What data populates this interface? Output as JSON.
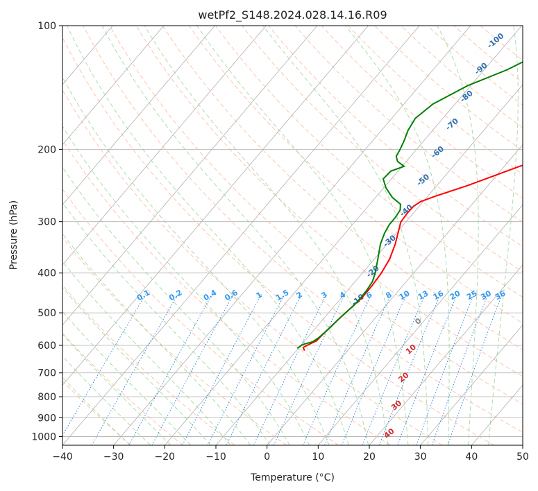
{
  "chart_data": {
    "type": "line",
    "subtype": "skew-t",
    "title": "wetPf2_S148.2024.028.14.16.R09",
    "xlabel": "Temperature (°C)",
    "ylabel": "Pressure (hPa)",
    "xlim": [
      -40,
      50
    ],
    "ylim": [
      1050,
      100
    ],
    "y_scale": "log",
    "grid": true,
    "x_ticks": [
      -40,
      -30,
      -20,
      -10,
      0,
      10,
      20,
      30,
      40,
      50
    ],
    "y_ticks": [
      100,
      200,
      300,
      400,
      500,
      600,
      700,
      800,
      900,
      1000
    ],
    "colors": {
      "temperature": "#ff0000",
      "dewpoint": "#008000",
      "isotherm": "#b0b0b0",
      "dry_adiabat": "#ffb090",
      "moist_adiabat": "#90d090",
      "mixing_ratio": "#3388dd",
      "theta_e": "#c8a882"
    },
    "mixing_ratio_labels": [
      "0.1",
      "0.2",
      "0.4",
      "0.6",
      "1",
      "1.5",
      "2",
      "3",
      "4",
      "6",
      "8",
      "10",
      "13",
      "16",
      "20",
      "25",
      "30",
      "36"
    ],
    "cold_labels": [
      "-100",
      "-90",
      "-80",
      "-70",
      "-60",
      "-50",
      "-40",
      "-30",
      "-20",
      "-10"
    ],
    "warm_labels": [
      "0",
      "10",
      "20",
      "30",
      "40"
    ],
    "series": [
      {
        "role": "temperature",
        "x": [
          -8.4,
          -9.2,
          -8.6,
          -7.7,
          -7.5,
          -7.0,
          -6.5,
          -6.0,
          -6.0,
          -6.3,
          -7.0,
          -8.4,
          -10.0,
          -11.0,
          -11.2,
          -11.1,
          -10.5,
          -8.5,
          -4.0,
          3.0,
          10.0,
          23.0,
          36.0,
          45.0
        ],
        "y": [
          618,
          607,
          597,
          585,
          560,
          520,
          490,
          460,
          430,
          400,
          370,
          340,
          315,
          300,
          285,
          275,
          268,
          260,
          245,
          220,
          200,
          168,
          130,
          100
        ]
      },
      {
        "role": "dewpoint",
        "x": [
          -10.2,
          -9.9,
          -9.6,
          -8.3,
          -7.8,
          -7.5,
          -7.2,
          -7.0,
          -6.7,
          -6.3,
          -6.2,
          -6.3,
          -6.6,
          -7.5,
          -9.3,
          -11.3,
          -12.3,
          -12.8,
          -12.8,
          -13.1,
          -14.0,
          -16.7,
          -19.6,
          -21.6,
          -21.4,
          -19.6,
          -21.7,
          -22.8,
          -23.2,
          -23.9,
          -24.8,
          -25.4,
          -24.3,
          -20.6,
          -15.5,
          -11.9,
          -6.7,
          -0.3
        ],
        "y": [
          610,
          600,
          596,
          588,
          575,
          560,
          540,
          520,
          500,
          480,
          460,
          440,
          420,
          400,
          370,
          340,
          320,
          305,
          293,
          281,
          272,
          262,
          248,
          236,
          226,
          220,
          214,
          208,
          200,
          190,
          180,
          168,
          155,
          140,
          128,
          117,
          108,
          100
        ]
      }
    ]
  }
}
